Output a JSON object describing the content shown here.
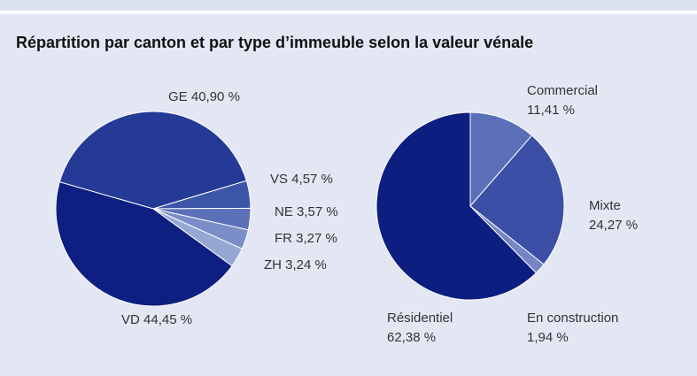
{
  "title": "Répartition par canton et par type d’immeuble selon la valeur vénale",
  "chart_data": [
    {
      "type": "pie",
      "categories": [
        "GE",
        "VS",
        "NE",
        "FR",
        "ZH",
        "VD"
      ],
      "values": [
        40.9,
        4.57,
        3.57,
        3.27,
        3.24,
        44.45
      ],
      "value_labels": [
        "40,90 %",
        "4,57 %",
        "3,57 %",
        "3,27 %",
        "3,24 %",
        "44,45 %"
      ],
      "colors": [
        "#243a96",
        "#3d55a8",
        "#5a70b8",
        "#7b8ec7",
        "#97a7d4",
        "#0d1f80"
      ]
    },
    {
      "type": "pie",
      "categories": [
        "Commercial",
        "Mixte",
        "En construction",
        "Résidentiel"
      ],
      "values": [
        11.41,
        24.27,
        1.94,
        62.38
      ],
      "value_labels": [
        "11,41 %",
        "24,27 %",
        "1,94 %",
        "62,38 %"
      ],
      "colors": [
        "#5b6fb8",
        "#3a4fa5",
        "#7486c4",
        "#0c1f80"
      ]
    }
  ]
}
